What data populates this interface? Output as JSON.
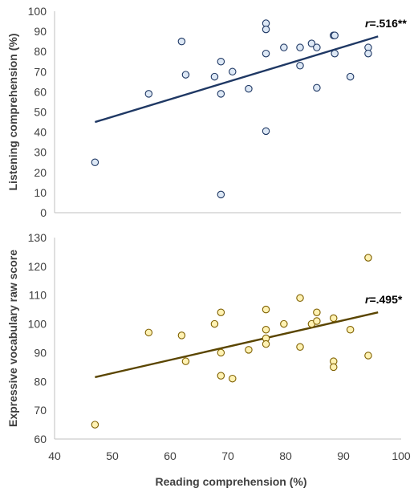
{
  "chart_data": [
    {
      "type": "scatter",
      "ylabel": "Listening comprehension (%)",
      "xlim": [
        40,
        100
      ],
      "ylim": [
        0,
        100
      ],
      "yticks": [
        0,
        10,
        20,
        30,
        40,
        50,
        60,
        70,
        80,
        90,
        100
      ],
      "grid": false,
      "annotation": {
        "prefix": "r",
        "text": "=.516**"
      },
      "trendline": {
        "x": [
          47,
          96
        ],
        "y": [
          45,
          87.5
        ]
      },
      "marker_fill": "#dde8f5",
      "marker_stroke": "#1f3864",
      "line_color": "#1f3864",
      "points": [
        {
          "x": 47,
          "y": 25
        },
        {
          "x": 56.3,
          "y": 59
        },
        {
          "x": 62,
          "y": 85
        },
        {
          "x": 62.7,
          "y": 68.5
        },
        {
          "x": 67.7,
          "y": 67.5
        },
        {
          "x": 68.8,
          "y": 75
        },
        {
          "x": 68.8,
          "y": 59
        },
        {
          "x": 68.8,
          "y": 9
        },
        {
          "x": 70.8,
          "y": 70
        },
        {
          "x": 73.6,
          "y": 61.5
        },
        {
          "x": 76.6,
          "y": 94
        },
        {
          "x": 76.6,
          "y": 91
        },
        {
          "x": 76.6,
          "y": 79
        },
        {
          "x": 76.6,
          "y": 40.5
        },
        {
          "x": 79.7,
          "y": 82
        },
        {
          "x": 82.5,
          "y": 82
        },
        {
          "x": 82.5,
          "y": 73
        },
        {
          "x": 84.5,
          "y": 84
        },
        {
          "x": 85.4,
          "y": 82
        },
        {
          "x": 85.4,
          "y": 62
        },
        {
          "x": 88.3,
          "y": 88
        },
        {
          "x": 88.5,
          "y": 88
        },
        {
          "x": 88.5,
          "y": 79
        },
        {
          "x": 91.2,
          "y": 67.5
        },
        {
          "x": 94.3,
          "y": 82
        },
        {
          "x": 94.3,
          "y": 79
        }
      ]
    },
    {
      "type": "scatter",
      "xlabel": "Reading comprehension (%)",
      "ylabel": "Expressive vocabulary raw score",
      "xlim": [
        40,
        100
      ],
      "ylim": [
        60,
        130
      ],
      "xticks": [
        40,
        50,
        60,
        70,
        80,
        90,
        100
      ],
      "yticks": [
        60,
        70,
        80,
        90,
        100,
        110,
        120,
        130
      ],
      "grid": false,
      "annotation": {
        "prefix": "r",
        "text": "=.495*"
      },
      "trendline": {
        "x": [
          47,
          96
        ],
        "y": [
          81.5,
          104
        ]
      },
      "marker_fill": "#fff2b3",
      "marker_stroke": "#7f6000",
      "line_color": "#5a4500",
      "points": [
        {
          "x": 47,
          "y": 65
        },
        {
          "x": 56.3,
          "y": 97
        },
        {
          "x": 62,
          "y": 96
        },
        {
          "x": 62.7,
          "y": 87
        },
        {
          "x": 67.7,
          "y": 100
        },
        {
          "x": 68.8,
          "y": 104
        },
        {
          "x": 68.8,
          "y": 90
        },
        {
          "x": 68.8,
          "y": 82
        },
        {
          "x": 70.8,
          "y": 81
        },
        {
          "x": 73.6,
          "y": 91
        },
        {
          "x": 76.6,
          "y": 105
        },
        {
          "x": 76.6,
          "y": 98
        },
        {
          "x": 76.6,
          "y": 95
        },
        {
          "x": 76.6,
          "y": 93
        },
        {
          "x": 79.7,
          "y": 100
        },
        {
          "x": 82.5,
          "y": 109
        },
        {
          "x": 82.5,
          "y": 92
        },
        {
          "x": 84.5,
          "y": 100
        },
        {
          "x": 85.4,
          "y": 104
        },
        {
          "x": 85.4,
          "y": 101
        },
        {
          "x": 88.3,
          "y": 102
        },
        {
          "x": 88.3,
          "y": 87
        },
        {
          "x": 88.3,
          "y": 85
        },
        {
          "x": 91.2,
          "y": 98
        },
        {
          "x": 94.3,
          "y": 123
        },
        {
          "x": 94.3,
          "y": 89
        }
      ]
    }
  ]
}
